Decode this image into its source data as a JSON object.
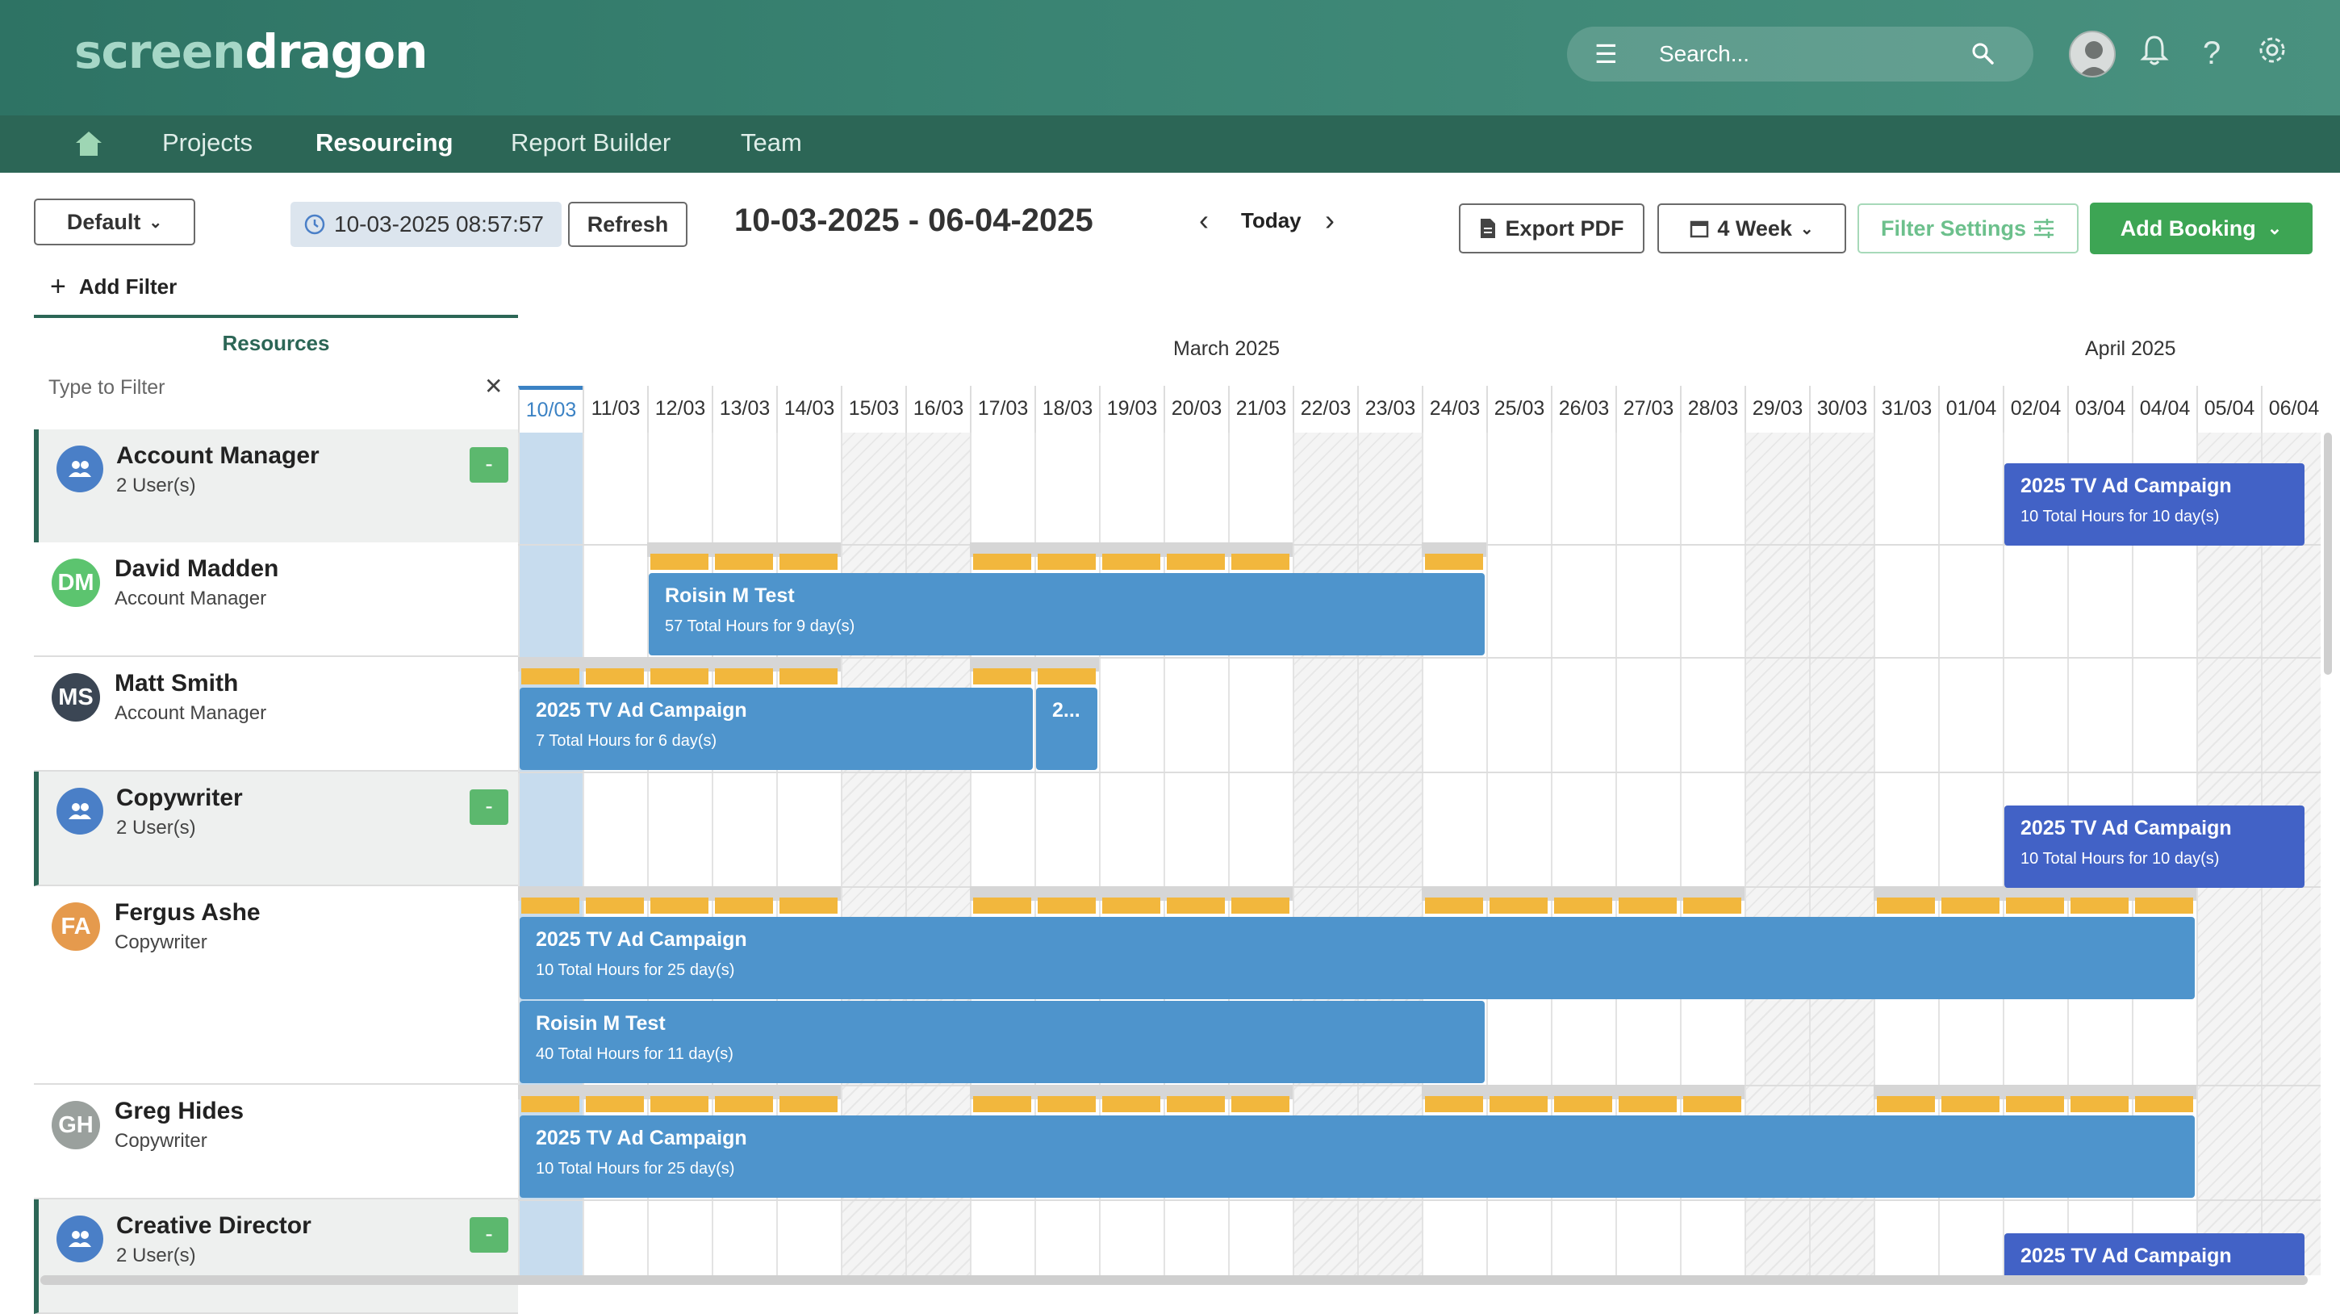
{
  "header": {
    "logo_part1": "screen",
    "logo_part2": "dragon",
    "search_placeholder": "Search..."
  },
  "nav": {
    "items": [
      {
        "label": "Projects",
        "active": false
      },
      {
        "label": "Resourcing",
        "active": true
      },
      {
        "label": "Report Builder",
        "active": false
      },
      {
        "label": "Team",
        "active": false
      }
    ]
  },
  "toolbar": {
    "view_select": "Default",
    "timestamp": "10-03-2025 08:57:57",
    "refresh": "Refresh",
    "date_range": "10-03-2025 - 06-04-2025",
    "today": "Today",
    "export_pdf": "Export PDF",
    "period_select": "4 Week",
    "filter_settings": "Filter Settings",
    "add_booking": "Add Booking",
    "add_filter": "Add Filter"
  },
  "resources_panel": {
    "title": "Resources",
    "filter_placeholder": "Type to Filter"
  },
  "timeline": {
    "months": [
      {
        "label": "March 2025"
      },
      {
        "label": "April 2025"
      }
    ],
    "days": [
      "10/03",
      "11/03",
      "12/03",
      "13/03",
      "14/03",
      "15/03",
      "16/03",
      "17/03",
      "18/03",
      "19/03",
      "20/03",
      "21/03",
      "22/03",
      "23/03",
      "24/03",
      "25/03",
      "26/03",
      "27/03",
      "28/03",
      "29/03",
      "30/03",
      "31/03",
      "01/04",
      "02/04",
      "03/04",
      "04/04",
      "05/04",
      "06/04"
    ],
    "current_day": "10/03",
    "weekend_days": [
      "15/03",
      "16/03",
      "22/03",
      "23/03",
      "29/03",
      "30/03",
      "05/04",
      "06/04"
    ]
  },
  "rows": [
    {
      "type": "group",
      "name": "Account Manager",
      "sub": "2 User(s)",
      "collapse": "-"
    },
    {
      "type": "user",
      "initials": "DM",
      "name": "David Madden",
      "sub": "Account Manager",
      "avatar_color": "#5cc46f"
    },
    {
      "type": "user",
      "initials": "MS",
      "name": "Matt Smith",
      "sub": "Account Manager",
      "avatar_color": "#3b4654"
    },
    {
      "type": "group",
      "name": "Copywriter",
      "sub": "2 User(s)",
      "collapse": "-"
    },
    {
      "type": "user",
      "initials": "FA",
      "name": "Fergus Ashe",
      "sub": "Copywriter",
      "avatar_color": "#e59a4d"
    },
    {
      "type": "user",
      "initials": "GH",
      "name": "Greg Hides",
      "sub": "Copywriter",
      "avatar_color": "#9aa09d"
    },
    {
      "type": "group",
      "name": "Creative Director",
      "sub": "2 User(s)",
      "collapse": "-"
    }
  ],
  "bookings": [
    {
      "row": 0,
      "title": "2025 TV Ad Campaign",
      "sub": "10 Total Hours for 10 day(s)",
      "start": "02/04",
      "end": "06/04",
      "style": "dark"
    },
    {
      "row": 1,
      "title": "Roisin M Test",
      "sub": "57 Total Hours for 9 day(s)",
      "start": "12/03",
      "end": "24/03",
      "style": "blue"
    },
    {
      "row": 2,
      "title": "2025 TV Ad Campaign",
      "sub": "7 Total Hours for 6 day(s)",
      "start": "10/03",
      "end": "17/03",
      "style": "blue"
    },
    {
      "row": 2,
      "title": "2...",
      "sub": "",
      "start": "18/03",
      "end": "18/03",
      "style": "blue"
    },
    {
      "row": 3,
      "title": "2025 TV Ad Campaign",
      "sub": "10 Total Hours for 10 day(s)",
      "start": "02/04",
      "end": "06/04",
      "style": "dark"
    },
    {
      "row": 4,
      "title": "2025 TV Ad Campaign",
      "sub": "10 Total Hours for 25 day(s)",
      "start": "10/03",
      "end": "04/04",
      "style": "blue"
    },
    {
      "row": 4,
      "title": "Roisin M Test",
      "sub": "40 Total Hours for 11 day(s)",
      "start": "10/03",
      "end": "24/03",
      "style": "blue"
    },
    {
      "row": 5,
      "title": "2025 TV Ad Campaign",
      "sub": "10 Total Hours for 25 day(s)",
      "start": "10/03",
      "end": "04/04",
      "style": "blue"
    },
    {
      "row": 6,
      "title": "2025 TV Ad Campaign",
      "sub": "",
      "start": "02/04",
      "end": "06/04",
      "style": "dark"
    }
  ],
  "capacity": [
    {
      "row": 1,
      "days": [
        "12/03",
        "13/03",
        "14/03",
        "17/03",
        "18/03",
        "19/03",
        "20/03",
        "21/03",
        "24/03"
      ]
    },
    {
      "row": 2,
      "days": [
        "10/03",
        "11/03",
        "12/03",
        "13/03",
        "14/03",
        "17/03",
        "18/03"
      ]
    },
    {
      "row": 4,
      "days": [
        "10/03",
        "11/03",
        "12/03",
        "13/03",
        "14/03",
        "17/03",
        "18/03",
        "19/03",
        "20/03",
        "21/03",
        "24/03",
        "25/03",
        "26/03",
        "27/03",
        "28/03",
        "31/03",
        "01/04",
        "02/04",
        "03/04",
        "04/04"
      ]
    },
    {
      "row": 5,
      "days": [
        "10/03",
        "11/03",
        "12/03",
        "13/03",
        "14/03",
        "17/03",
        "18/03",
        "19/03",
        "20/03",
        "21/03",
        "24/03",
        "25/03",
        "26/03",
        "27/03",
        "28/03",
        "31/03",
        "01/04",
        "02/04",
        "03/04",
        "04/04"
      ]
    }
  ],
  "colors": {
    "brand_green": "#2c6656",
    "accent_green": "#3da554",
    "booking_blue": "#4e94cc",
    "booking_dark": "#4262c6",
    "capacity_orange": "#f2b73d"
  }
}
